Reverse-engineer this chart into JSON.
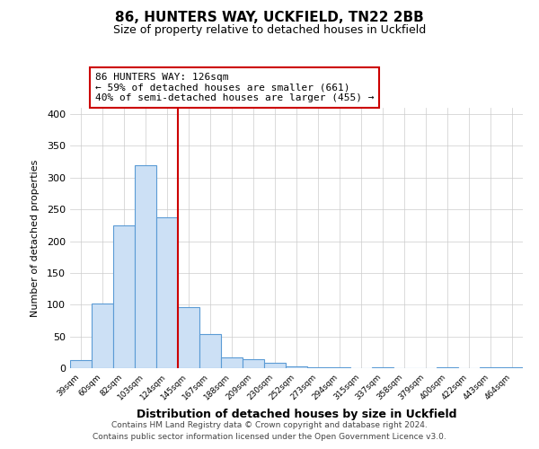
{
  "title": "86, HUNTERS WAY, UCKFIELD, TN22 2BB",
  "subtitle": "Size of property relative to detached houses in Uckfield",
  "xlabel": "Distribution of detached houses by size in Uckfield",
  "ylabel": "Number of detached properties",
  "bin_labels": [
    "39sqm",
    "60sqm",
    "82sqm",
    "103sqm",
    "124sqm",
    "145sqm",
    "167sqm",
    "188sqm",
    "209sqm",
    "230sqm",
    "252sqm",
    "273sqm",
    "294sqm",
    "315sqm",
    "337sqm",
    "358sqm",
    "379sqm",
    "400sqm",
    "422sqm",
    "443sqm",
    "464sqm"
  ],
  "bar_heights": [
    13,
    102,
    225,
    320,
    237,
    96,
    54,
    17,
    14,
    9,
    3,
    2,
    1,
    0,
    1,
    0,
    0,
    1,
    0,
    1,
    1
  ],
  "bar_color": "#cce0f5",
  "bar_edge_color": "#5b9bd5",
  "vline_color": "#cc0000",
  "vline_x": 4.5,
  "annotation_title": "86 HUNTERS WAY: 126sqm",
  "annotation_line1": "← 59% of detached houses are smaller (661)",
  "annotation_line2": "40% of semi-detached houses are larger (455) →",
  "annotation_box_color": "#cc0000",
  "ylim": [
    0,
    410
  ],
  "yticks": [
    0,
    50,
    100,
    150,
    200,
    250,
    300,
    350,
    400
  ],
  "footer_line1": "Contains HM Land Registry data © Crown copyright and database right 2024.",
  "footer_line2": "Contains public sector information licensed under the Open Government Licence v3.0.",
  "bg_color": "#ffffff",
  "grid_color": "#cccccc"
}
